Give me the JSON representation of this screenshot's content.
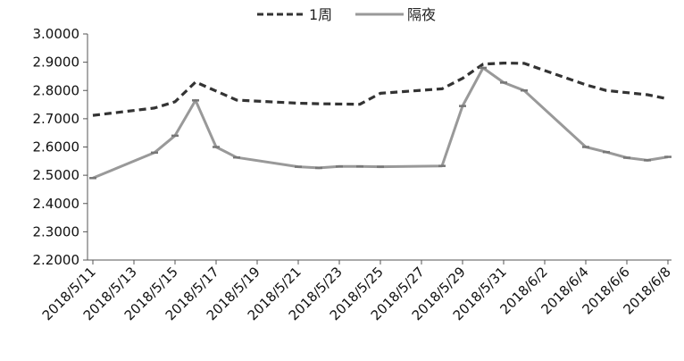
{
  "chart_data": {
    "type": "line",
    "x": [
      "2018/5/11",
      "2018/5/13",
      "2018/5/15",
      "2018/5/17",
      "2018/5/19",
      "2018/5/21",
      "2018/5/23",
      "2018/5/25",
      "2018/5/27",
      "2018/5/29",
      "2018/5/31",
      "2018/6/2",
      "2018/6/4",
      "2018/6/6",
      "2018/6/8"
    ],
    "ylim": [
      2.2,
      3.0
    ],
    "yticks": [
      "2.2000",
      "2.3000",
      "2.4000",
      "2.5000",
      "2.6000",
      "2.7000",
      "2.8000",
      "2.9000",
      "3.0000"
    ],
    "legend_position": "top-center",
    "grid": false,
    "series": [
      {
        "name": "1周",
        "style": "dashed",
        "color": "#333333",
        "points": [
          {
            "x": "2018/5/11",
            "y": 2.712
          },
          {
            "x": "2018/5/14",
            "y": 2.738
          },
          {
            "x": "2018/5/15",
            "y": 2.76
          },
          {
            "x": "2018/5/16",
            "y": 2.83
          },
          {
            "x": "2018/5/18",
            "y": 2.766
          },
          {
            "x": "2018/5/21",
            "y": 2.755
          },
          {
            "x": "2018/5/22",
            "y": 2.753
          },
          {
            "x": "2018/5/24",
            "y": 2.751
          },
          {
            "x": "2018/5/25",
            "y": 2.79
          },
          {
            "x": "2018/5/28",
            "y": 2.806
          },
          {
            "x": "2018/5/29",
            "y": 2.843
          },
          {
            "x": "2018/5/30",
            "y": 2.893
          },
          {
            "x": "2018/5/31",
            "y": 2.897
          },
          {
            "x": "2018/6/1",
            "y": 2.896
          },
          {
            "x": "2018/6/4",
            "y": 2.82
          },
          {
            "x": "2018/6/5",
            "y": 2.8
          },
          {
            "x": "2018/6/7",
            "y": 2.785
          },
          {
            "x": "2018/6/8",
            "y": 2.77
          }
        ]
      },
      {
        "name": "隔夜",
        "style": "solid",
        "color": "#999999",
        "points": [
          {
            "x": "2018/5/11",
            "y": 2.49
          },
          {
            "x": "2018/5/14",
            "y": 2.58
          },
          {
            "x": "2018/5/15",
            "y": 2.64
          },
          {
            "x": "2018/5/16",
            "y": 2.765
          },
          {
            "x": "2018/5/17",
            "y": 2.6
          },
          {
            "x": "2018/5/18",
            "y": 2.563
          },
          {
            "x": "2018/5/21",
            "y": 2.53
          },
          {
            "x": "2018/5/22",
            "y": 2.526
          },
          {
            "x": "2018/5/23",
            "y": 2.531
          },
          {
            "x": "2018/5/24",
            "y": 2.531
          },
          {
            "x": "2018/5/25",
            "y": 2.53
          },
          {
            "x": "2018/5/28",
            "y": 2.533
          },
          {
            "x": "2018/5/29",
            "y": 2.745
          },
          {
            "x": "2018/5/30",
            "y": 2.88
          },
          {
            "x": "2018/5/31",
            "y": 2.828
          },
          {
            "x": "2018/6/1",
            "y": 2.8
          },
          {
            "x": "2018/6/4",
            "y": 2.6
          },
          {
            "x": "2018/6/5",
            "y": 2.582
          },
          {
            "x": "2018/6/6",
            "y": 2.562
          },
          {
            "x": "2018/6/7",
            "y": 2.553
          },
          {
            "x": "2018/6/8",
            "y": 2.565
          }
        ]
      }
    ]
  }
}
